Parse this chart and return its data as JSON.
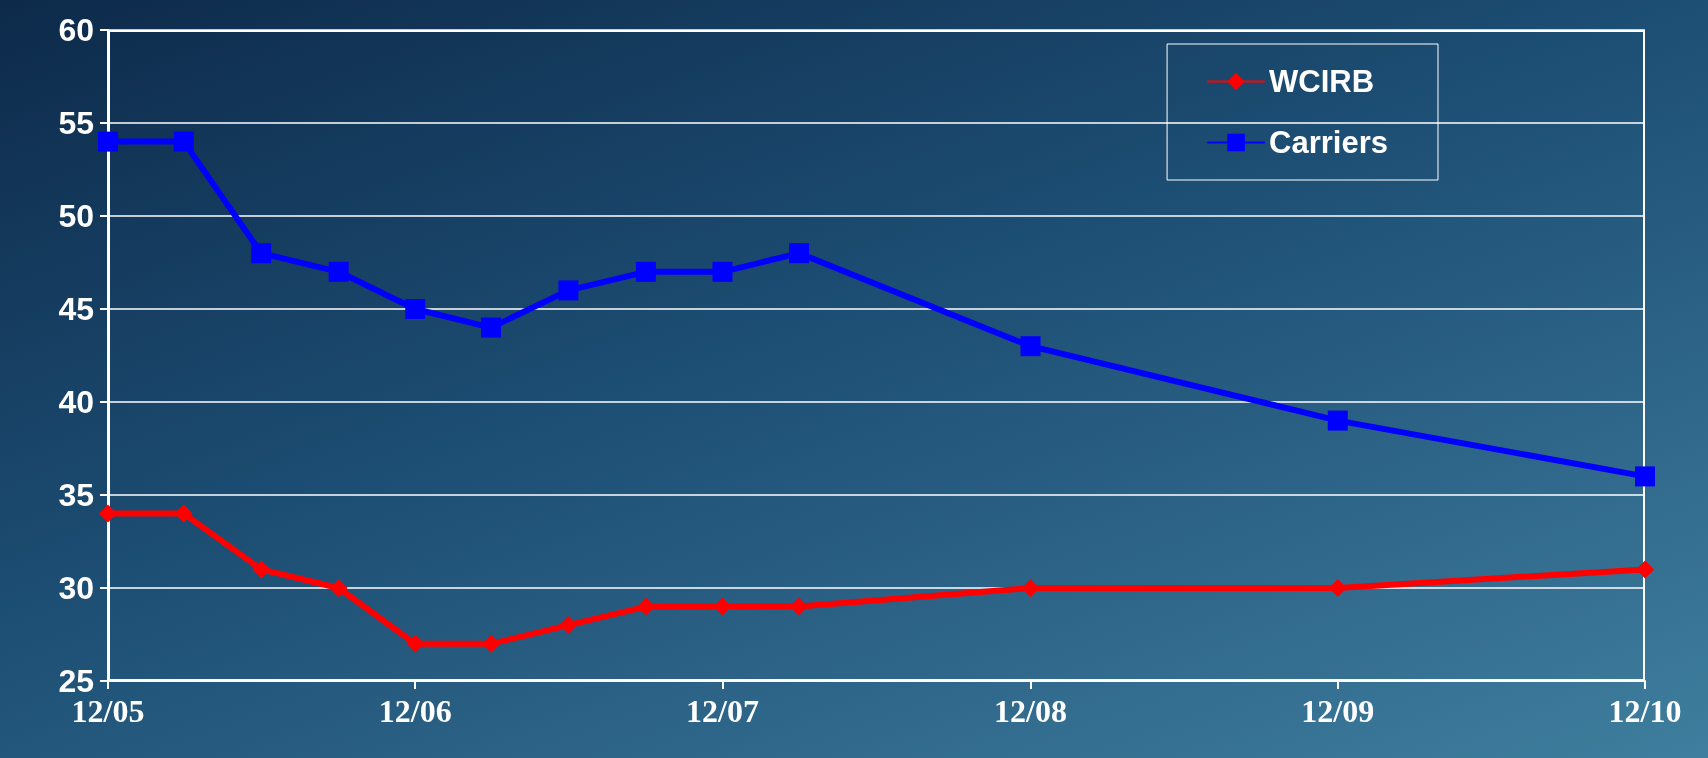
{
  "chart_data": {
    "type": "line",
    "x": [
      "2005-12",
      "2006-03",
      "2006-06",
      "2006-09",
      "2006-12",
      "2007-03",
      "2007-06",
      "2007-09",
      "2007-12",
      "2008-03",
      "2008-12",
      "2009-12",
      "2010-12"
    ],
    "series": [
      {
        "name": "WCIRB",
        "color": "#ff0000",
        "marker": "diamond",
        "values": [
          34,
          34,
          31,
          30,
          27,
          27,
          28,
          29,
          29,
          29,
          30,
          30,
          31
        ]
      },
      {
        "name": "Carriers",
        "color": "#0000ff",
        "marker": "square",
        "values": [
          54,
          54,
          48,
          47,
          45,
          44,
          46,
          47,
          47,
          48,
          43,
          39,
          36
        ]
      }
    ],
    "xlim": [
      "2005-12",
      "2010-12"
    ],
    "xticks": [
      {
        "value": "2005-12",
        "label": "12/05"
      },
      {
        "value": "2006-12",
        "label": "12/06"
      },
      {
        "value": "2007-12",
        "label": "12/07"
      },
      {
        "value": "2008-12",
        "label": "12/08"
      },
      {
        "value": "2009-12",
        "label": "12/09"
      },
      {
        "value": "2010-12",
        "label": "12/10"
      }
    ],
    "ylim": [
      25,
      60
    ],
    "yticks": [
      25,
      30,
      35,
      40,
      45,
      50,
      55,
      60
    ],
    "grid": "y",
    "legend": "top right",
    "line_style": "solid"
  }
}
